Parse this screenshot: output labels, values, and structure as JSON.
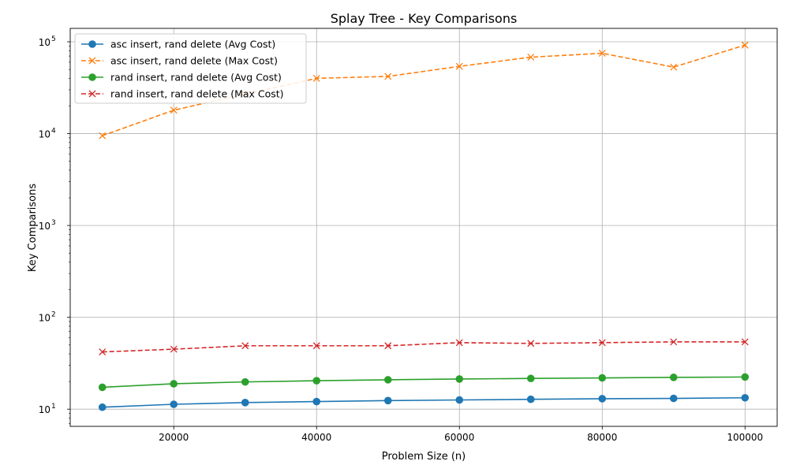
{
  "chart_data": {
    "type": "line",
    "title": "Splay Tree - Key Comparisons",
    "xlabel": "Problem Size (n)",
    "ylabel": "Key Comparisons",
    "xscale": "linear",
    "yscale": "log",
    "xlim": [
      5500,
      104500
    ],
    "ylim": [
      6.5,
      140000
    ],
    "xticks": [
      20000,
      40000,
      60000,
      80000,
      100000
    ],
    "xtick_labels": [
      "20000",
      "40000",
      "60000",
      "80000",
      "100000"
    ],
    "yticks": [
      10,
      100,
      1000,
      10000,
      100000
    ],
    "ytick_base_labels": [
      "10",
      "10",
      "10",
      "10",
      "10"
    ],
    "ytick_exponents": [
      "1",
      "2",
      "3",
      "4",
      "5"
    ],
    "grid": true,
    "legend_position": "upper-left",
    "x": [
      10000,
      20000,
      30000,
      40000,
      50000,
      60000,
      70000,
      80000,
      90000,
      100000
    ],
    "series": [
      {
        "name": "asc insert, rand delete (Avg Cost)",
        "color": "#1f77b4",
        "linestyle": "solid",
        "marker": "circle",
        "values": [
          10.5,
          11.3,
          11.8,
          12.1,
          12.4,
          12.6,
          12.8,
          13.0,
          13.1,
          13.3
        ]
      },
      {
        "name": "asc insert, rand delete (Max Cost)",
        "color": "#ff7f0e",
        "linestyle": "dashed",
        "marker": "x",
        "values": [
          9500,
          18000,
          27000,
          40000,
          42000,
          54000,
          68000,
          75000,
          53000,
          92000
        ]
      },
      {
        "name": "rand insert, rand delete (Avg Cost)",
        "color": "#2ca02c",
        "linestyle": "solid",
        "marker": "circle",
        "values": [
          17.3,
          18.9,
          19.8,
          20.4,
          20.9,
          21.3,
          21.6,
          21.9,
          22.2,
          22.4
        ]
      },
      {
        "name": "rand insert, rand delete (Max Cost)",
        "color": "#d62728",
        "linestyle": "dashed",
        "marker": "x",
        "values": [
          42,
          45,
          49,
          49,
          49,
          53,
          52,
          53,
          54,
          54
        ]
      }
    ]
  }
}
